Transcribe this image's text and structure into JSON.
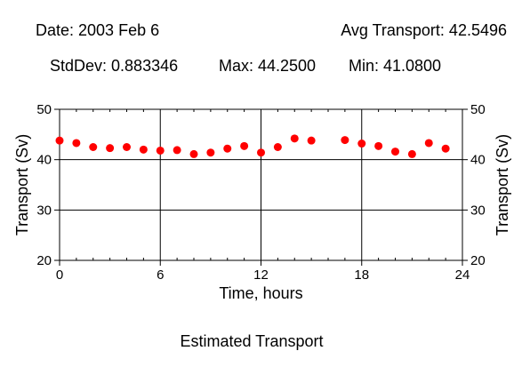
{
  "header": {
    "date": "Date: 2003 Feb 6",
    "avg": "Avg Transport: 42.5496",
    "stddev": "StdDev: 0.883346",
    "max": "Max: 44.2500",
    "min": "Min: 41.0800"
  },
  "caption": "Estimated Transport",
  "chart_data": {
    "type": "scatter",
    "title": "",
    "xlabel": "Time, hours",
    "ylabel": "Transport (Sv)",
    "ylabel_right": "Transport (Sv)",
    "xlim": [
      0,
      24
    ],
    "ylim": [
      20,
      50
    ],
    "xticks": [
      0,
      6,
      12,
      18,
      24
    ],
    "yticks": [
      20,
      30,
      40,
      50
    ],
    "grid": true,
    "marker_color": "#ff0000",
    "points": [
      {
        "x": 0,
        "y": 43.8
      },
      {
        "x": 1,
        "y": 43.3
      },
      {
        "x": 2,
        "y": 42.5
      },
      {
        "x": 3,
        "y": 42.3
      },
      {
        "x": 4,
        "y": 42.5
      },
      {
        "x": 5,
        "y": 42.0
      },
      {
        "x": 6,
        "y": 41.8
      },
      {
        "x": 7,
        "y": 41.9
      },
      {
        "x": 8,
        "y": 41.1
      },
      {
        "x": 9,
        "y": 41.4
      },
      {
        "x": 10,
        "y": 42.2
      },
      {
        "x": 11,
        "y": 42.7
      },
      {
        "x": 12,
        "y": 41.4
      },
      {
        "x": 13,
        "y": 42.5
      },
      {
        "x": 14,
        "y": 44.2
      },
      {
        "x": 15,
        "y": 43.8
      },
      {
        "x": 17,
        "y": 43.9
      },
      {
        "x": 18,
        "y": 43.2
      },
      {
        "x": 19,
        "y": 42.7
      },
      {
        "x": 20,
        "y": 41.6
      },
      {
        "x": 21,
        "y": 41.1
      },
      {
        "x": 22,
        "y": 43.3
      },
      {
        "x": 23,
        "y": 42.2
      }
    ]
  }
}
